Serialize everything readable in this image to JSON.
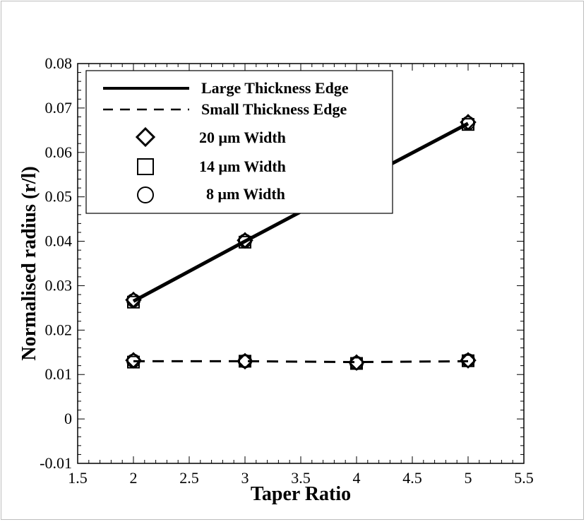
{
  "chart_data": {
    "type": "line",
    "xlabel": "Taper Ratio",
    "ylabel": "Normalised radius (r/l)",
    "xlim": [
      1.5,
      5.5
    ],
    "ylim": [
      -0.01,
      0.08
    ],
    "xticks": [
      "1.5",
      "2",
      "2.5",
      "3",
      "3.5",
      "4",
      "4.5",
      "5",
      "5.5"
    ],
    "yticks": [
      "-0.01",
      "0",
      "0.01",
      "0.02",
      "0.03",
      "0.04",
      "0.05",
      "0.06",
      "0.07",
      "0.08"
    ],
    "grid": false,
    "legend_position": "top-left",
    "x": [
      2,
      3,
      4,
      5
    ],
    "lines": [
      {
        "name": "Large Thickness Edge",
        "style": "solid",
        "values": [
          0.0265,
          0.04,
          0.0533,
          0.0665
        ]
      },
      {
        "name": "Small Thickness Edge",
        "style": "dashed",
        "values": [
          0.013,
          0.013,
          0.0128,
          0.013
        ]
      }
    ],
    "markers": [
      {
        "name": "20 μm Width",
        "symbol": "diamond",
        "large": [
          0.0268,
          0.0402,
          0.0535,
          0.0668
        ],
        "small": [
          0.0132,
          0.013,
          0.0127,
          0.0132
        ]
      },
      {
        "name": "14 μm Width",
        "symbol": "square",
        "large": [
          0.0263,
          0.0398,
          0.0532,
          0.0663
        ],
        "small": [
          0.0128,
          0.013,
          0.0125,
          0.0131
        ]
      },
      {
        "name": "8 μm Width",
        "symbol": "circle",
        "large": [
          0.0267,
          0.0401,
          0.0534,
          0.0666
        ],
        "small": [
          0.0131,
          0.013,
          0.0126,
          0.0132
        ]
      }
    ]
  }
}
